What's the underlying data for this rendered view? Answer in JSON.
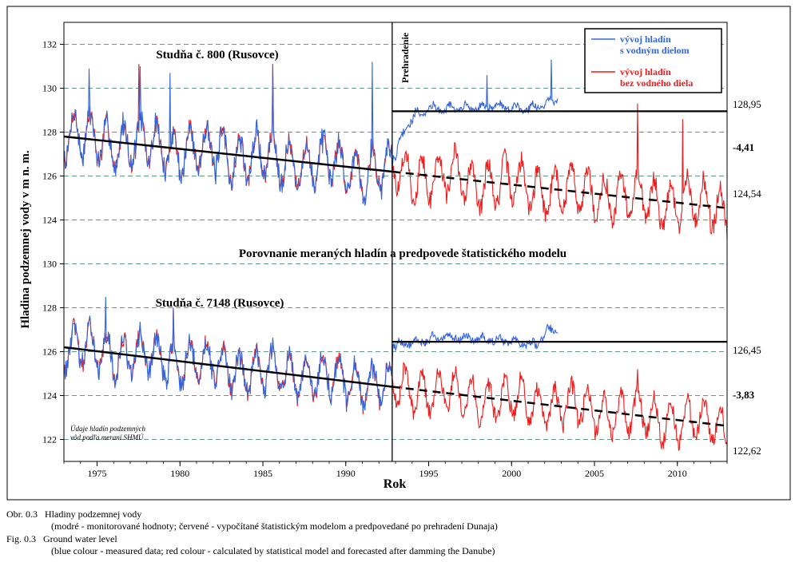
{
  "chart_data": {
    "type": "line",
    "xlabel": "Rok",
    "ylabel": "Hladina podzemnej vody v m n. m.",
    "x_range": [
      1973,
      2013
    ],
    "x_ticks": [
      1975,
      1980,
      1985,
      1990,
      1995,
      2000,
      2005,
      2010
    ],
    "damming_year": 1992.8,
    "damming_label": "Prehradenie",
    "grid": true,
    "legend_position": "top-right",
    "legend": [
      {
        "label_lines": [
          "vývoj hladín",
          "s vodným dielom"
        ],
        "color": "#3366dd"
      },
      {
        "label_lines": [
          "vývoj hladín",
          "bez vodného diela"
        ],
        "color": "#ee1c1c"
      }
    ],
    "middle_title": "Porovnanie meraných hladín a predpovede štatistického modelu",
    "note_lines": [
      "Údaje hladín podzemných",
      "vôd podľa meraní SHMÚ"
    ],
    "colors": {
      "measured": "#3366dd",
      "model": "#ee1c1c",
      "trend": "#000000",
      "grid": "#2e7d5b"
    },
    "panels": [
      {
        "title": "Studňa č. 800 (Rusovce)",
        "ylim": [
          123,
          133
        ],
        "y_ticks": [
          124,
          126,
          128,
          130,
          132
        ],
        "trend": {
          "start": [
            1973,
            127.8
          ],
          "break": [
            1992.8,
            126.2
          ],
          "end": [
            2013,
            124.54
          ]
        },
        "with_dam_level": 128.95,
        "with_dam_label": "128,95",
        "forecast_end_label": "124,54",
        "change_label": "-4,41",
        "amplitude": 1.0,
        "seed": 7,
        "series": [
          {
            "name": "vývoj hladín s vodným dielom",
            "color": "#3366dd",
            "period": [
              1973,
              2002.8
            ],
            "points": [
              [
                1993.0,
                126.8
              ],
              [
                1993.5,
                128.0
              ],
              [
                1994.2,
                128.7
              ],
              [
                1995.0,
                129.0
              ],
              [
                1997.0,
                129.0
              ],
              [
                1999.0,
                129.1
              ],
              [
                2001.0,
                129.0
              ],
              [
                2002.8,
                129.4
              ]
            ],
            "peaks": [
              [
                1974.5,
                130.9
              ],
              [
                1977.6,
                131.0
              ],
              [
                1979.4,
                130.7
              ],
              [
                1985.6,
                131.1
              ],
              [
                1991.6,
                131.2
              ],
              [
                1998.5,
                130.6
              ],
              [
                2002.4,
                131.3
              ]
            ]
          },
          {
            "name": "vývoj hladín bez vodného diela",
            "color": "#ee1c1c",
            "period": [
              1973,
              2013
            ],
            "peaks": [
              [
                1977.5,
                131.1
              ],
              [
                1985.6,
                131.1
              ],
              [
                2007.6,
                129.3
              ],
              [
                2010.3,
                128.6
              ]
            ]
          }
        ]
      },
      {
        "title": "Studňa č. 7148 (Rusovce)",
        "ylim": [
          121,
          131
        ],
        "y_ticks": [
          122,
          124,
          126,
          128,
          130
        ],
        "trend": {
          "start": [
            1973,
            126.2
          ],
          "break": [
            1992.8,
            124.4
          ],
          "end": [
            2013,
            122.62
          ]
        },
        "with_dam_level": 126.45,
        "with_dam_label": "126,45",
        "forecast_end_label": "122,62",
        "change_label": "-3,83",
        "amplitude": 0.9,
        "seed": 13,
        "series": [
          {
            "name": "vývoj hladín s vodným dielom",
            "color": "#3366dd",
            "period": [
              1973,
              2002.8
            ],
            "points": [
              [
                1993.0,
                126.2
              ],
              [
                1994.5,
                126.4
              ],
              [
                1996.0,
                126.6
              ],
              [
                1998.0,
                126.5
              ],
              [
                2000.0,
                126.4
              ],
              [
                2001.5,
                126.2
              ],
              [
                2002.2,
                126.9
              ],
              [
                2002.8,
                126.8
              ]
            ],
            "peaks": [
              [
                1975.5,
                128.5
              ],
              [
                1979.6,
                128.0
              ]
            ]
          },
          {
            "name": "vývoj hladín bez vodného diela",
            "color": "#ee1c1c",
            "period": [
              1973,
              2013
            ],
            "peaks": [
              [
                1979.6,
                128.0
              ],
              [
                2007.6,
                125.2
              ]
            ]
          }
        ]
      }
    ]
  },
  "caption": {
    "sk_label": "Obr. 0.3",
    "sk_title": "Hladiny podzemnej vody",
    "sk_detail": "(modré - monitorované hodnoty; červené - vypočítané štatistickým modelom a predpovedané po prehradení Dunaja)",
    "en_label": "Fig. 0.3",
    "en_title": "Ground water level",
    "en_detail": "(blue colour - measured data; red colour - calculated by statistical model and forecasted after damming the Danube)"
  }
}
